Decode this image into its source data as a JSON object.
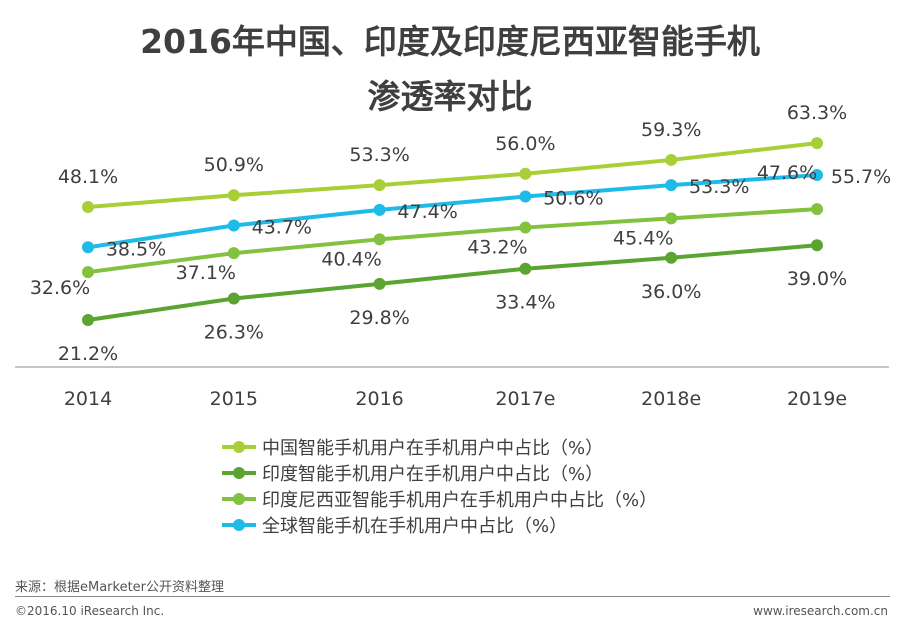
{
  "title": {
    "line1": "2016年中国、印度及印度尼西亚智能手机",
    "line2": "渗透率对比"
  },
  "footer": {
    "source": "来源：根据eMarketer公开资料整理",
    "copyright": "©2016.10 iResearch Inc.",
    "website": "www.iresearch.com.cn"
  },
  "chart_data": {
    "type": "line",
    "categories": [
      "2014",
      "2015",
      "2016",
      "2017e",
      "2018e",
      "2019e"
    ],
    "ylim": [
      10,
      70
    ],
    "grid": false,
    "legend_position": "bottom",
    "series": [
      {
        "name": "中国智能手机用户在手机用户中占比（%）",
        "color": "#a8cf38",
        "values": [
          48.1,
          50.9,
          53.3,
          56.0,
          59.3,
          63.3
        ],
        "labels": [
          "48.1%",
          "50.9%",
          "53.3%",
          "56.0%",
          "59.3%",
          "63.3%"
        ]
      },
      {
        "name": "印度智能手机用户在手机用户中占比（%）",
        "color": "#5aa531",
        "values": [
          21.2,
          26.3,
          29.8,
          33.4,
          36.0,
          39.0
        ],
        "labels": [
          "21.2%",
          "26.3%",
          "29.8%",
          "33.4%",
          "36.0%",
          "39.0%"
        ]
      },
      {
        "name": "印度尼西亚智能手机用户在手机用户中占比（%）",
        "color": "#82c23f",
        "values": [
          32.6,
          37.1,
          40.4,
          43.2,
          45.4,
          47.6
        ],
        "labels": [
          "32.6%",
          "37.1%",
          "40.4%",
          "43.2%",
          "45.4%",
          "47.6%"
        ]
      },
      {
        "name": "全球智能手机在手机用户中占比（%）",
        "color": "#1fbbe8",
        "values": [
          38.5,
          43.7,
          47.4,
          50.6,
          53.3,
          55.7
        ],
        "labels": [
          "38.5%",
          "43.7%",
          "47.4%",
          "50.6%",
          "53.3%",
          "55.7%"
        ]
      }
    ]
  }
}
